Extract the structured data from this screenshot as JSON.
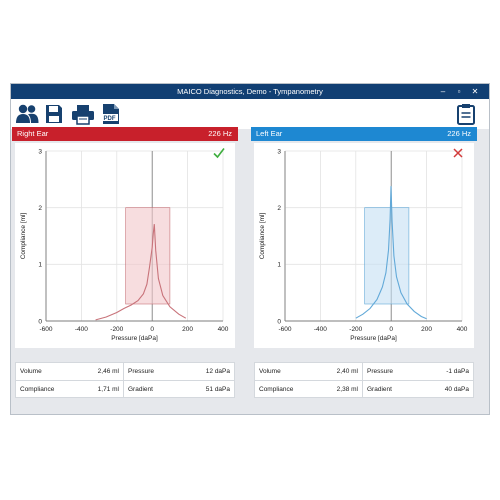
{
  "window": {
    "title": "MAICO Diagnostics, Demo - Tympanometry"
  },
  "toolbar": {
    "buttons": [
      {
        "name": "patients-icon"
      },
      {
        "name": "save-icon"
      },
      {
        "name": "print-icon"
      },
      {
        "name": "pdf-icon",
        "label": "PDF"
      },
      {
        "name": "clipboard-icon"
      }
    ]
  },
  "right_ear": {
    "title": "Right Ear",
    "frequency": "226 Hz",
    "header_color": "#c8202b",
    "curve_color": "#c8737a",
    "box_color": "#f2c6c9",
    "status": "check",
    "status_color": "#3fae3f",
    "metrics": {
      "volume_label": "Volume",
      "volume_value": "2,46 ml",
      "pressure_label": "Pressure",
      "pressure_value": "12 daPa",
      "compliance_label": "Compliance",
      "compliance_value": "1,71 ml",
      "gradient_label": "Gradient",
      "gradient_value": "51 daPa"
    }
  },
  "left_ear": {
    "title": "Left Ear",
    "frequency": "226 Hz",
    "header_color": "#1e88d2",
    "curve_color": "#62a9d8",
    "box_color": "#c5e0f3",
    "status": "cross",
    "status_color": "#d23a3a",
    "metrics": {
      "volume_label": "Volume",
      "volume_value": "2,40 ml",
      "pressure_label": "Pressure",
      "pressure_value": "-1 daPa",
      "compliance_label": "Compliance",
      "compliance_value": "2,38 ml",
      "gradient_label": "Gradient",
      "gradient_value": "40 daPa"
    }
  },
  "chart_data": [
    {
      "type": "line",
      "name": "Right Ear",
      "xlabel": "Pressure [daPa]",
      "ylabel": "Compliance [ml]",
      "xlim": [
        -600,
        400
      ],
      "ylim": [
        0,
        3
      ],
      "xticks": [
        "-600",
        "-400",
        "-200",
        "0",
        "200",
        "400"
      ],
      "yticks": [
        "0",
        "1",
        "2",
        "3"
      ],
      "normal_box": {
        "x": [
          -150,
          100
        ],
        "y": [
          0.3,
          2.0
        ]
      },
      "series": [
        {
          "x": [
            -320,
            -260,
            -200,
            -160,
            -120,
            -80,
            -50,
            -30,
            -15,
            0,
            6,
            12,
            20,
            35,
            60,
            100,
            150,
            190
          ],
          "y": [
            0.02,
            0.07,
            0.15,
            0.22,
            0.28,
            0.36,
            0.48,
            0.65,
            0.95,
            1.3,
            1.55,
            1.71,
            1.25,
            0.75,
            0.45,
            0.25,
            0.12,
            0.05
          ]
        }
      ]
    },
    {
      "type": "line",
      "name": "Left Ear",
      "xlabel": "Pressure [daPa]",
      "ylabel": "Compliance [ml]",
      "xlim": [
        -600,
        400
      ],
      "ylim": [
        0,
        3
      ],
      "xticks": [
        "-600",
        "-400",
        "-200",
        "0",
        "200",
        "400"
      ],
      "yticks": [
        "0",
        "1",
        "2",
        "3"
      ],
      "normal_box": {
        "x": [
          -150,
          100
        ],
        "y": [
          0.3,
          2.0
        ]
      },
      "series": [
        {
          "x": [
            -200,
            -160,
            -120,
            -80,
            -50,
            -30,
            -15,
            -6,
            -1,
            5,
            15,
            30,
            55,
            90,
            130,
            170,
            200
          ],
          "y": [
            0.05,
            0.12,
            0.22,
            0.38,
            0.6,
            0.85,
            1.25,
            1.8,
            2.38,
            1.75,
            1.15,
            0.78,
            0.5,
            0.3,
            0.17,
            0.08,
            0.04
          ]
        }
      ]
    }
  ]
}
